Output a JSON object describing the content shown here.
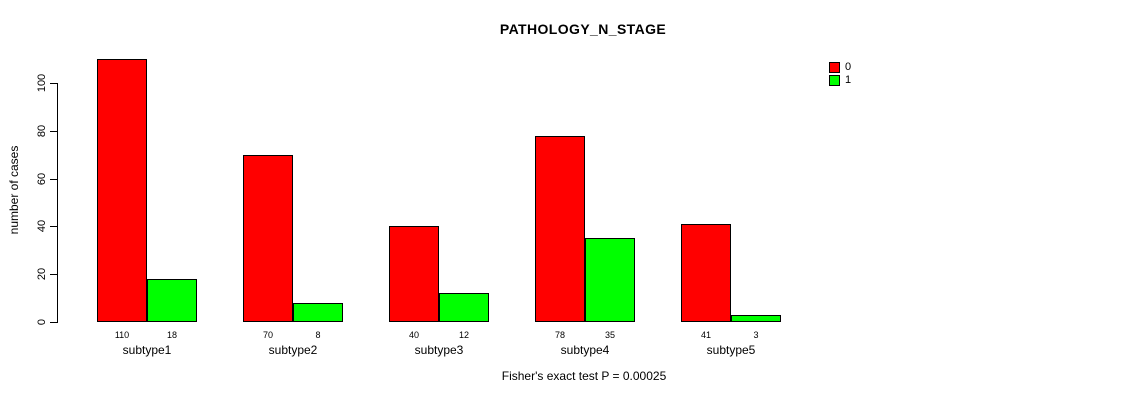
{
  "chart_data": {
    "type": "bar",
    "title": "PATHOLOGY_N_STAGE",
    "ylabel": "number of cases",
    "xlabel": "",
    "footer": "Fisher's exact test P = 0.00025",
    "categories": [
      "subtype1",
      "subtype2",
      "subtype3",
      "subtype4",
      "subtype5"
    ],
    "series": [
      {
        "name": "0",
        "color": "#FF0000",
        "values": [
          110,
          70,
          40,
          78,
          41
        ]
      },
      {
        "name": "1",
        "color": "#00FF00",
        "values": [
          18,
          8,
          12,
          35,
          3
        ]
      }
    ],
    "yticks": [
      0,
      20,
      40,
      60,
      80,
      100
    ],
    "ylim": [
      0,
      110
    ],
    "grid": false,
    "legend_position": "top-right",
    "background_color": "#FFFFFF",
    "axis_color": "#000000"
  }
}
